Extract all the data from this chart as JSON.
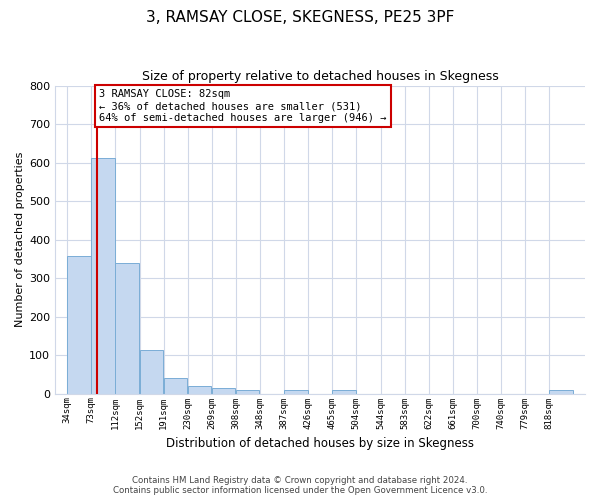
{
  "title": "3, RAMSAY CLOSE, SKEGNESS, PE25 3PF",
  "subtitle": "Size of property relative to detached houses in Skegness",
  "xlabel": "Distribution of detached houses by size in Skegness",
  "ylabel": "Number of detached properties",
  "bar_labels": [
    "34sqm",
    "73sqm",
    "112sqm",
    "152sqm",
    "191sqm",
    "230sqm",
    "269sqm",
    "308sqm",
    "348sqm",
    "387sqm",
    "426sqm",
    "465sqm",
    "504sqm",
    "544sqm",
    "583sqm",
    "622sqm",
    "661sqm",
    "700sqm",
    "740sqm",
    "779sqm",
    "818sqm"
  ],
  "bar_heights": [
    357,
    611,
    340,
    114,
    40,
    20,
    14,
    10,
    0,
    10,
    0,
    10,
    0,
    0,
    0,
    0,
    0,
    0,
    0,
    0,
    10
  ],
  "bar_color": "#c5d8f0",
  "bar_edge_color": "#7aadd6",
  "ylim": [
    0,
    800
  ],
  "yticks": [
    0,
    100,
    200,
    300,
    400,
    500,
    600,
    700,
    800
  ],
  "property_size": 82,
  "property_label": "3 RAMSAY CLOSE: 82sqm",
  "annotation_line1": "← 36% of detached houses are smaller (531)",
  "annotation_line2": "64% of semi-detached houses are larger (946) →",
  "vline_color": "#cc0000",
  "box_edge_color": "#cc0000",
  "footer_line1": "Contains HM Land Registry data © Crown copyright and database right 2024.",
  "footer_line2": "Contains public sector information licensed under the Open Government Licence v3.0.",
  "bg_color": "#ffffff",
  "grid_color": "#d0d8e8"
}
